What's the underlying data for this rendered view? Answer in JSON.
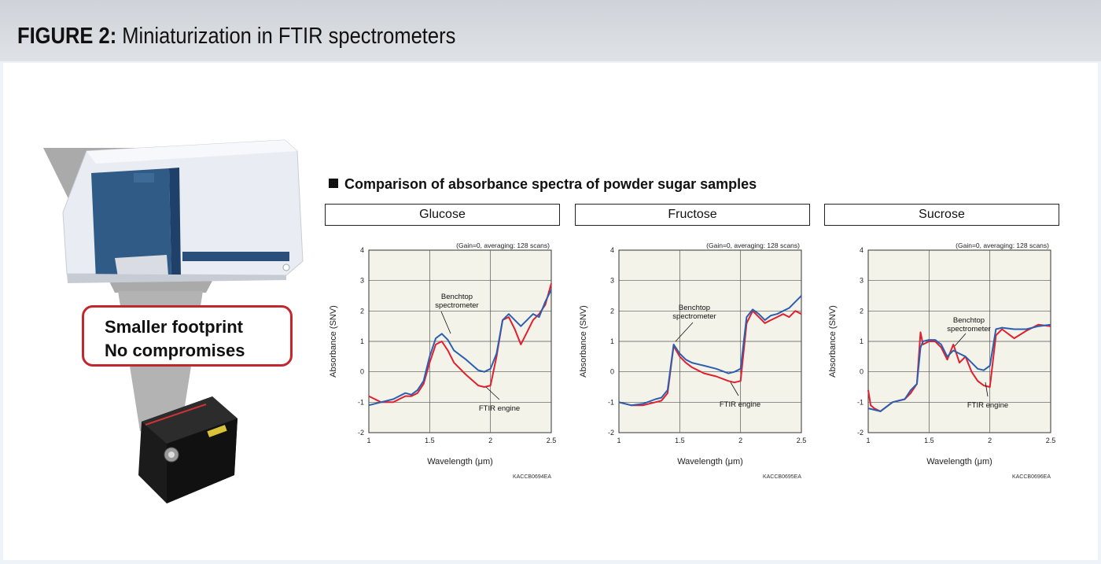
{
  "header": {
    "figure_label": "FIGURE 2:",
    "title": "Miniaturization in FTIR spectrometers"
  },
  "callout": {
    "line1": "Smaller footprint",
    "line2": "No compromises"
  },
  "section_title": "Comparison of absorbance spectra of powder sugar samples",
  "colors": {
    "benchtop": "#2b5fb0",
    "ftir": "#e0202e",
    "plot_bg": "#f3f3ea",
    "callout_border": "#c1272d"
  },
  "chart_data": [
    {
      "type": "line",
      "panel_title": "Glucose",
      "note": "(Gain=0, averaging: 128 scans)",
      "xlabel": "Wavelength (μm)",
      "ylabel": "Absorbance (SNV)",
      "xlim": [
        1,
        2.5
      ],
      "ylim": [
        -2,
        4
      ],
      "xticks": [
        "1",
        "1.5",
        "2",
        "2.5"
      ],
      "yticks": [
        "4",
        "3",
        "2",
        "1",
        "0",
        "-1",
        "-2"
      ],
      "code": "KACCB0694EA",
      "annotations": [
        {
          "lines": [
            "Benchtop",
            "spectrometer"
          ]
        },
        {
          "lines": [
            "FTIR engine"
          ]
        }
      ],
      "series": [
        {
          "name": "Benchtop spectrometer",
          "x": [
            1.0,
            1.1,
            1.2,
            1.3,
            1.35,
            1.4,
            1.45,
            1.5,
            1.55,
            1.6,
            1.65,
            1.7,
            1.8,
            1.9,
            1.95,
            2.0,
            2.05,
            2.1,
            2.15,
            2.2,
            2.25,
            2.3,
            2.35,
            2.4,
            2.45,
            2.5
          ],
          "y": [
            -1.1,
            -1.0,
            -0.9,
            -0.7,
            -0.75,
            -0.6,
            -0.3,
            0.5,
            1.1,
            1.25,
            1.05,
            0.7,
            0.4,
            0.05,
            0.0,
            0.1,
            0.6,
            1.7,
            1.9,
            1.7,
            1.5,
            1.7,
            1.9,
            1.8,
            2.3,
            2.7
          ]
        },
        {
          "name": "FTIR engine",
          "x": [
            1.0,
            1.1,
            1.2,
            1.3,
            1.35,
            1.4,
            1.45,
            1.5,
            1.55,
            1.6,
            1.65,
            1.7,
            1.8,
            1.9,
            1.95,
            2.0,
            2.05,
            2.1,
            2.15,
            2.2,
            2.25,
            2.3,
            2.35,
            2.4,
            2.45,
            2.5
          ],
          "y": [
            -0.8,
            -1.0,
            -1.0,
            -0.8,
            -0.8,
            -0.7,
            -0.4,
            0.3,
            0.9,
            1.0,
            0.7,
            0.3,
            -0.1,
            -0.45,
            -0.5,
            -0.45,
            0.5,
            1.7,
            1.8,
            1.4,
            0.9,
            1.3,
            1.7,
            1.9,
            2.2,
            2.9
          ]
        }
      ]
    },
    {
      "type": "line",
      "panel_title": "Fructose",
      "note": "(Gain=0, averaging: 128 scans)",
      "xlabel": "Wavelength (μm)",
      "ylabel": "Absorbance (SNV)",
      "xlim": [
        1,
        2.5
      ],
      "ylim": [
        -2,
        4
      ],
      "xticks": [
        "1",
        "1.5",
        "2",
        "2.5"
      ],
      "yticks": [
        "4",
        "3",
        "2",
        "1",
        "0",
        "-1",
        "-2"
      ],
      "code": "KACCB0695EA",
      "annotations": [
        {
          "lines": [
            "Benchtop",
            "spectrometer"
          ]
        },
        {
          "lines": [
            "FTIR engine"
          ]
        }
      ],
      "series": [
        {
          "name": "Benchtop spectrometer",
          "x": [
            1.0,
            1.1,
            1.2,
            1.3,
            1.35,
            1.4,
            1.45,
            1.5,
            1.55,
            1.6,
            1.7,
            1.8,
            1.9,
            1.95,
            2.0,
            2.05,
            2.1,
            2.15,
            2.2,
            2.25,
            2.3,
            2.35,
            2.4,
            2.45,
            2.5
          ],
          "y": [
            -1.0,
            -1.1,
            -1.05,
            -0.9,
            -0.85,
            -0.6,
            0.9,
            0.6,
            0.4,
            0.3,
            0.2,
            0.1,
            -0.05,
            0.0,
            0.1,
            1.8,
            2.05,
            1.9,
            1.7,
            1.85,
            1.9,
            2.0,
            2.1,
            2.3,
            2.5
          ]
        },
        {
          "name": "FTIR engine",
          "x": [
            1.0,
            1.1,
            1.2,
            1.3,
            1.35,
            1.4,
            1.45,
            1.5,
            1.55,
            1.6,
            1.7,
            1.8,
            1.9,
            1.95,
            2.0,
            2.05,
            2.1,
            2.15,
            2.2,
            2.25,
            2.3,
            2.35,
            2.4,
            2.45,
            2.5
          ],
          "y": [
            -1.0,
            -1.1,
            -1.1,
            -1.0,
            -0.95,
            -0.7,
            0.85,
            0.5,
            0.3,
            0.15,
            -0.05,
            -0.15,
            -0.3,
            -0.35,
            -0.3,
            1.6,
            2.0,
            1.8,
            1.6,
            1.7,
            1.8,
            1.9,
            1.8,
            2.0,
            1.9
          ]
        }
      ]
    },
    {
      "type": "line",
      "panel_title": "Sucrose",
      "note": "(Gain=0, averaging: 128 scans)",
      "xlabel": "Wavelength (μm)",
      "ylabel": "Absorbance (SNV)",
      "xlim": [
        1,
        2.5
      ],
      "ylim": [
        -2,
        4
      ],
      "xticks": [
        "1",
        "1.5",
        "2",
        "2.5"
      ],
      "yticks": [
        "4",
        "3",
        "2",
        "1",
        "0",
        "-1",
        "-2"
      ],
      "code": "KACCB0696EA",
      "annotations": [
        {
          "lines": [
            "Benchtop",
            "spectrometer"
          ]
        },
        {
          "lines": [
            "FTIR engine"
          ]
        }
      ],
      "series": [
        {
          "name": "Benchtop spectrometer",
          "x": [
            1.0,
            1.1,
            1.2,
            1.3,
            1.35,
            1.4,
            1.43,
            1.45,
            1.5,
            1.55,
            1.6,
            1.65,
            1.7,
            1.75,
            1.8,
            1.85,
            1.9,
            1.95,
            2.0,
            2.05,
            2.1,
            2.2,
            2.3,
            2.4,
            2.5
          ],
          "y": [
            -1.2,
            -1.3,
            -1.0,
            -0.9,
            -0.6,
            -0.4,
            0.8,
            1.0,
            1.05,
            1.05,
            0.9,
            0.5,
            0.7,
            0.6,
            0.5,
            0.3,
            0.1,
            0.05,
            0.2,
            1.4,
            1.45,
            1.4,
            1.4,
            1.5,
            1.55
          ]
        },
        {
          "name": "FTIR engine",
          "x": [
            1.0,
            1.02,
            1.05,
            1.1,
            1.2,
            1.3,
            1.35,
            1.4,
            1.43,
            1.45,
            1.5,
            1.55,
            1.6,
            1.65,
            1.7,
            1.75,
            1.8,
            1.85,
            1.9,
            1.95,
            2.0,
            2.05,
            2.1,
            2.2,
            2.3,
            2.4,
            2.5
          ],
          "y": [
            -0.6,
            -1.1,
            -1.2,
            -1.3,
            -1.0,
            -0.9,
            -0.7,
            -0.4,
            1.3,
            0.9,
            1.0,
            1.0,
            0.8,
            0.4,
            0.9,
            0.3,
            0.5,
            0.0,
            -0.3,
            -0.45,
            -0.5,
            1.2,
            1.4,
            1.1,
            1.35,
            1.55,
            1.5
          ]
        }
      ]
    }
  ]
}
